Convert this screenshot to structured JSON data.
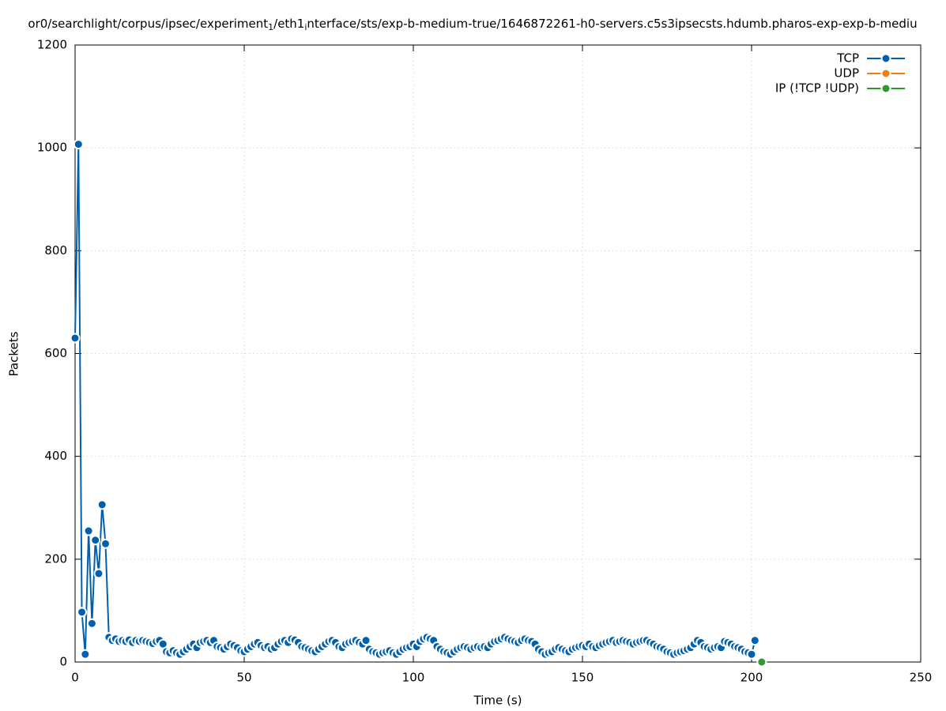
{
  "chart_data": {
    "type": "line",
    "title": [
      "or0/searchlight/corpus/ipsec/experiment",
      "1",
      "/eth1",
      "i",
      "nterface/sts/exp-b-medium-true/1646872261-h0-servers.c5s3ipsecsts.hdumb.pharos-exp-exp-b-mediu"
    ],
    "x_label": "Time (s)",
    "y_label": "Packets",
    "xlim": [
      0,
      250
    ],
    "xticks": [
      0,
      50,
      100,
      150,
      200,
      250
    ],
    "ylim": [
      0,
      1200
    ],
    "yticks": [
      0,
      200,
      400,
      600,
      800,
      1000,
      1200
    ],
    "grid": true,
    "legend": "top-right",
    "series": [
      {
        "name": "TCP",
        "color": "#0060ad",
        "x": [
          0,
          1,
          2,
          3,
          4,
          5,
          6,
          7,
          8,
          9,
          10,
          11,
          12,
          13,
          14,
          15,
          16,
          17,
          18,
          19,
          20,
          21,
          22,
          23,
          24,
          25,
          26,
          27,
          28,
          29,
          30,
          31,
          32,
          33,
          34,
          35,
          36,
          37,
          38,
          39,
          40,
          41,
          42,
          43,
          44,
          45,
          46,
          47,
          48,
          49,
          50,
          51,
          52,
          53,
          54,
          55,
          56,
          57,
          58,
          59,
          60,
          61,
          62,
          63,
          64,
          65,
          66,
          67,
          68,
          69,
          70,
          71,
          72,
          73,
          74,
          75,
          76,
          77,
          78,
          79,
          80,
          81,
          82,
          83,
          84,
          85,
          86,
          87,
          88,
          89,
          90,
          91,
          92,
          93,
          94,
          95,
          96,
          97,
          98,
          99,
          100,
          101,
          102,
          103,
          104,
          105,
          106,
          107,
          108,
          109,
          110,
          111,
          112,
          113,
          114,
          115,
          116,
          117,
          118,
          119,
          120,
          121,
          122,
          123,
          124,
          125,
          126,
          127,
          128,
          129,
          130,
          131,
          132,
          133,
          134,
          135,
          136,
          137,
          138,
          139,
          140,
          141,
          142,
          143,
          144,
          145,
          146,
          147,
          148,
          149,
          150,
          151,
          152,
          153,
          154,
          155,
          156,
          157,
          158,
          159,
          160,
          161,
          162,
          163,
          164,
          165,
          166,
          167,
          168,
          169,
          170,
          171,
          172,
          173,
          174,
          175,
          176,
          177,
          178,
          179,
          180,
          181,
          182,
          183,
          184,
          185,
          186,
          187,
          188,
          189,
          190,
          191,
          192,
          193,
          194,
          195,
          196,
          197,
          198,
          199,
          200,
          201
        ],
        "values": [
          630,
          1007,
          97,
          15,
          255,
          75,
          237,
          172,
          306,
          230,
          48,
          42,
          45,
          40,
          42,
          40,
          43,
          38,
          42,
          40,
          42,
          40,
          38,
          36,
          40,
          42,
          35,
          20,
          18,
          22,
          18,
          15,
          20,
          25,
          30,
          35,
          28,
          38,
          40,
          42,
          38,
          42,
          30,
          28,
          25,
          30,
          35,
          32,
          28,
          22,
          20,
          25,
          30,
          35,
          38,
          32,
          28,
          30,
          25,
          28,
          35,
          40,
          42,
          38,
          45,
          43,
          38,
          30,
          28,
          25,
          22,
          20,
          25,
          30,
          35,
          40,
          42,
          38,
          30,
          28,
          35,
          38,
          40,
          42,
          38,
          35,
          42,
          25,
          20,
          18,
          15,
          18,
          20,
          22,
          18,
          15,
          20,
          25,
          28,
          30,
          35,
          30,
          40,
          45,
          48,
          45,
          42,
          30,
          25,
          20,
          18,
          15,
          20,
          25,
          28,
          30,
          28,
          25,
          28,
          30,
          28,
          30,
          28,
          35,
          40,
          42,
          45,
          48,
          45,
          42,
          40,
          38,
          42,
          45,
          42,
          40,
          35,
          25,
          20,
          15,
          18,
          20,
          25,
          28,
          25,
          22,
          20,
          25,
          28,
          30,
          32,
          30,
          35,
          30,
          28,
          32,
          35,
          38,
          40,
          42,
          38,
          40,
          42,
          40,
          38,
          35,
          38,
          40,
          42,
          42,
          38,
          35,
          30,
          28,
          25,
          20,
          18,
          15,
          18,
          20,
          22,
          25,
          28,
          35,
          42,
          38,
          30,
          28,
          25,
          28,
          30,
          28,
          40,
          38,
          35,
          30,
          28,
          25,
          20,
          18,
          15,
          42
        ]
      },
      {
        "name": "UDP",
        "color": "#f07f10",
        "x": [],
        "values": []
      },
      {
        "name": "IP (!TCP  !UDP)",
        "color": "#2f9a35",
        "x": [
          203
        ],
        "values": [
          0
        ]
      }
    ]
  }
}
